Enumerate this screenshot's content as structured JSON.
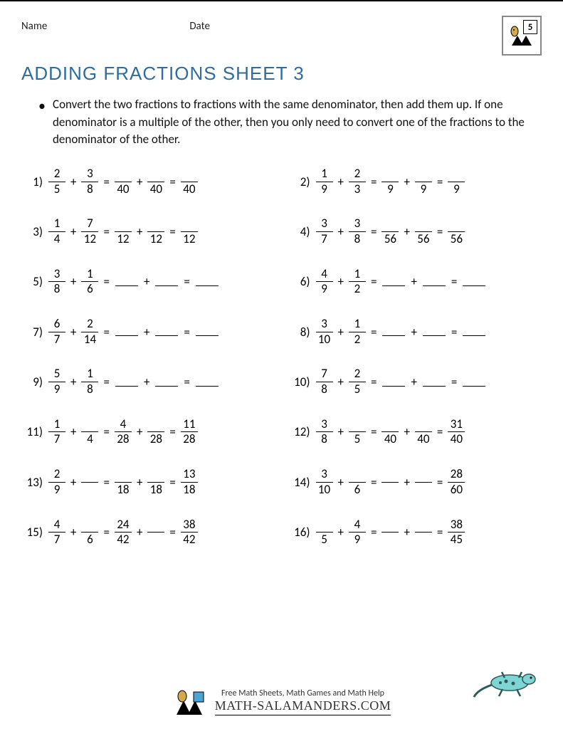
{
  "header": {
    "name_label": "Name",
    "date_label": "Date",
    "grade_badge": "5"
  },
  "title": "ADDING FRACTIONS SHEET 3",
  "instructions": "Convert the two fractions to fractions with the same denominator, then add them up. If one denominator is a multiple of the other, then you only need to convert one of the fractions to the denominator of the other.",
  "colors": {
    "title": "#2e6da4",
    "text": "#111111",
    "border": "#000000",
    "background": "#ffffff"
  },
  "typography": {
    "title_fontsize": 26,
    "body_fontsize": 17,
    "problem_fontsize": 17
  },
  "problems": [
    {
      "n": "1)",
      "a": {
        "t": "2",
        "b": "5"
      },
      "b": {
        "t": "3",
        "b": "8"
      },
      "r1": {
        "t": "",
        "b": "40"
      },
      "r2": {
        "t": "",
        "b": "40"
      },
      "r3": {
        "t": "",
        "b": "40"
      }
    },
    {
      "n": "2)",
      "a": {
        "t": "1",
        "b": "9"
      },
      "b": {
        "t": "2",
        "b": "3"
      },
      "r1": {
        "t": "",
        "b": "9"
      },
      "r2": {
        "t": "",
        "b": "9"
      },
      "r3": {
        "t": "",
        "b": "9"
      }
    },
    {
      "n": "3)",
      "a": {
        "t": "1",
        "b": "4"
      },
      "b": {
        "t": "7",
        "b": "12"
      },
      "r1": {
        "t": "",
        "b": "12"
      },
      "r2": {
        "t": "",
        "b": "12"
      },
      "r3": {
        "t": "",
        "b": "12"
      }
    },
    {
      "n": "4)",
      "a": {
        "t": "3",
        "b": "7"
      },
      "b": {
        "t": "3",
        "b": "8"
      },
      "r1": {
        "t": "",
        "b": "56"
      },
      "r2": {
        "t": "",
        "b": "56"
      },
      "r3": {
        "t": "",
        "b": "56"
      }
    },
    {
      "n": "5)",
      "a": {
        "t": "3",
        "b": "8"
      },
      "b": {
        "t": "1",
        "b": "6"
      },
      "r1": null,
      "r2": null,
      "r3": null
    },
    {
      "n": "6)",
      "a": {
        "t": "4",
        "b": "9"
      },
      "b": {
        "t": "1",
        "b": "2"
      },
      "r1": null,
      "r2": null,
      "r3": null
    },
    {
      "n": "7)",
      "a": {
        "t": "6",
        "b": "7"
      },
      "b": {
        "t": "2",
        "b": "14"
      },
      "r1": null,
      "r2": null,
      "r3": null
    },
    {
      "n": "8)",
      "a": {
        "t": "3",
        "b": "10"
      },
      "b": {
        "t": "1",
        "b": "2"
      },
      "r1": null,
      "r2": null,
      "r3": null
    },
    {
      "n": "9)",
      "a": {
        "t": "5",
        "b": "9"
      },
      "b": {
        "t": "1",
        "b": "8"
      },
      "r1": null,
      "r2": null,
      "r3": null
    },
    {
      "n": "10)",
      "a": {
        "t": "7",
        "b": "8"
      },
      "b": {
        "t": "2",
        "b": "5"
      },
      "r1": null,
      "r2": null,
      "r3": null
    },
    {
      "n": "11)",
      "a": {
        "t": "1",
        "b": "7"
      },
      "b": {
        "t": "",
        "b": "4"
      },
      "r1": {
        "t": "4",
        "b": "28"
      },
      "r2": {
        "t": "",
        "b": "28"
      },
      "r3": {
        "t": "11",
        "b": "28"
      }
    },
    {
      "n": "12)",
      "a": {
        "t": "3",
        "b": "8"
      },
      "b": {
        "t": "",
        "b": "5"
      },
      "r1": {
        "t": "",
        "b": "40"
      },
      "r2": {
        "t": "",
        "b": "40"
      },
      "r3": {
        "t": "31",
        "b": "40"
      }
    },
    {
      "n": "13)",
      "a": {
        "t": "2",
        "b": "9"
      },
      "b": {
        "t": "",
        "b": ""
      },
      "r1": {
        "t": "",
        "b": "18"
      },
      "r2": {
        "t": "",
        "b": "18"
      },
      "r3": {
        "t": "13",
        "b": "18"
      }
    },
    {
      "n": "14)",
      "a": {
        "t": "3",
        "b": "10"
      },
      "b": {
        "t": "",
        "b": "6"
      },
      "r1": {
        "t": "",
        "b": ""
      },
      "r2": {
        "t": "",
        "b": ""
      },
      "r3": {
        "t": "28",
        "b": "60"
      }
    },
    {
      "n": "15)",
      "a": {
        "t": "4",
        "b": "7"
      },
      "b": {
        "t": "",
        "b": "6"
      },
      "r1": {
        "t": "24",
        "b": "42"
      },
      "r2": {
        "t": "",
        "b": ""
      },
      "r3": {
        "t": "38",
        "b": "42"
      }
    },
    {
      "n": "16)",
      "a": {
        "t": "",
        "b": "5"
      },
      "b": {
        "t": "4",
        "b": "9"
      },
      "r1": {
        "t": "",
        "b": ""
      },
      "r2": {
        "t": "",
        "b": ""
      },
      "r3": {
        "t": "38",
        "b": "45"
      }
    }
  ],
  "footer": {
    "tagline": "Free Math Sheets, Math Games and Math Help",
    "brand": "MATH-SALAMANDERS.COM"
  }
}
